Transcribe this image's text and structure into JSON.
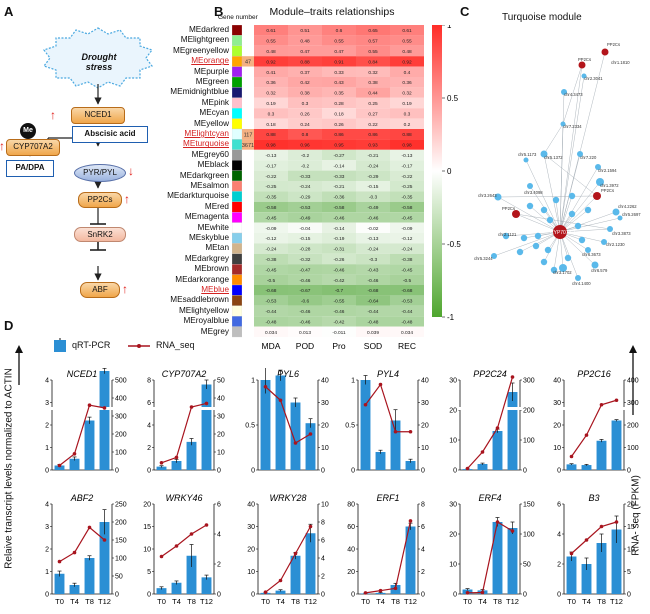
{
  "panels": {
    "a": "A",
    "b": "B",
    "c": "C",
    "d": "D"
  },
  "panel_a": {
    "stress": "Drought stress",
    "nced": "NCED1",
    "me": "Me",
    "cyp": "CYP707A2",
    "aba": "Abscisic acid",
    "padpa": "PA/DPA",
    "pyr": "PYR/PYL",
    "pp2c": "PP2Cs",
    "snrk": "SnRK2",
    "abf": "ABF"
  },
  "panel_b": {
    "title": "Module–traits relationships",
    "gene_number": "Gene number",
    "colorbar_ticks": [
      "1",
      "0.5",
      "0",
      "-0.5",
      "-1"
    ],
    "traits": [
      "MDA",
      "POD",
      "Pro",
      "SOD",
      "REC"
    ],
    "modules": [
      {
        "name": "MEdarkred",
        "color": "#8b0000",
        "num": "",
        "hl": false,
        "v": [
          0.61,
          0.51,
          0.6,
          0.65,
          0.61
        ]
      },
      {
        "name": "MElightgreen",
        "color": "#90ee90",
        "num": "",
        "hl": false,
        "v": [
          0.55,
          0.48,
          0.55,
          0.57,
          0.55
        ]
      },
      {
        "name": "MEgreenyellow",
        "color": "#adff2f",
        "num": "",
        "hl": false,
        "v": [
          0.48,
          0.47,
          0.47,
          0.55,
          0.48
        ]
      },
      {
        "name": "MEorange",
        "color": "#ffa500",
        "num": "47",
        "hl": true,
        "v": [
          0.92,
          0.88,
          0.91,
          0.84,
          0.92
        ]
      },
      {
        "name": "MEpurple",
        "color": "#a020f0",
        "num": "",
        "hl": false,
        "v": [
          0.41,
          0.37,
          0.33,
          0.32,
          0.4
        ]
      },
      {
        "name": "MEgreen",
        "color": "#00a000",
        "num": "",
        "hl": false,
        "v": [
          0.36,
          0.42,
          0.43,
          0.38,
          0.36
        ]
      },
      {
        "name": "MEmidnightblue",
        "color": "#191970",
        "num": "",
        "hl": false,
        "v": [
          0.32,
          0.38,
          0.35,
          0.44,
          0.32
        ]
      },
      {
        "name": "MEpink",
        "color": "#ffc0cb",
        "num": "",
        "hl": false,
        "v": [
          0.19,
          0.3,
          0.28,
          0.25,
          0.19
        ]
      },
      {
        "name": "MEcyan",
        "color": "#00ffff",
        "num": "",
        "hl": false,
        "v": [
          0.3,
          0.26,
          0.18,
          0.27,
          0.3
        ]
      },
      {
        "name": "MEyellow",
        "color": "#ffff00",
        "num": "",
        "hl": false,
        "v": [
          0.18,
          0.24,
          0.26,
          0.22,
          0.2
        ]
      },
      {
        "name": "MElightcyan",
        "color": "#e0ffff",
        "num": "117",
        "hl": true,
        "v": [
          0.88,
          0.8,
          0.86,
          0.86,
          0.88
        ]
      },
      {
        "name": "MEturquoise",
        "color": "#40e0d0",
        "num": "3671",
        "hl": true,
        "v": [
          0.98,
          0.96,
          0.95,
          0.93,
          0.98
        ]
      },
      {
        "name": "MEgrey60",
        "color": "#999999",
        "num": "",
        "hl": false,
        "v": [
          -0.13,
          -0.2,
          -0.27,
          -0.21,
          -0.13
        ]
      },
      {
        "name": "MEblack",
        "color": "#000000",
        "num": "",
        "hl": false,
        "v": [
          -0.17,
          -0.2,
          -0.14,
          -0.24,
          -0.17
        ]
      },
      {
        "name": "MEdarkgreen",
        "color": "#006400",
        "num": "",
        "hl": false,
        "v": [
          -0.22,
          -0.33,
          -0.33,
          -0.29,
          -0.22
        ]
      },
      {
        "name": "MEsalmon",
        "color": "#fa8072",
        "num": "",
        "hl": false,
        "v": [
          -0.25,
          -0.24,
          -0.21,
          -0.15,
          -0.25
        ]
      },
      {
        "name": "MEdarkturquoise",
        "color": "#00ced1",
        "num": "",
        "hl": false,
        "v": [
          -0.35,
          -0.29,
          -0.36,
          -0.3,
          -0.35
        ]
      },
      {
        "name": "MEred",
        "color": "#ff0000",
        "num": "",
        "hl": false,
        "v": [
          -0.58,
          -0.53,
          -0.58,
          -0.49,
          -0.58
        ]
      },
      {
        "name": "MEmagenta",
        "color": "#ff00ff",
        "num": "",
        "hl": false,
        "v": [
          -0.45,
          -0.49,
          -0.46,
          -0.46,
          -0.45
        ]
      },
      {
        "name": "MEwhite",
        "color": "#ffffff",
        "num": "",
        "hl": false,
        "v": [
          -0.09,
          -0.04,
          -0.14,
          -0.02,
          -0.09
        ]
      },
      {
        "name": "MEskyblue",
        "color": "#87ceeb",
        "num": "",
        "hl": false,
        "v": [
          -0.12,
          -0.15,
          -0.19,
          -0.13,
          -0.12
        ]
      },
      {
        "name": "MEtan",
        "color": "#d2b48c",
        "num": "",
        "hl": false,
        "v": [
          -0.24,
          -0.28,
          -0.31,
          -0.24,
          -0.24
        ]
      },
      {
        "name": "MEdarkgrey",
        "color": "#404040",
        "num": "",
        "hl": false,
        "v": [
          -0.38,
          -0.32,
          -0.26,
          -0.3,
          -0.38
        ]
      },
      {
        "name": "MEbrown",
        "color": "#a52a2a",
        "num": "",
        "hl": false,
        "v": [
          -0.45,
          -0.47,
          -0.46,
          -0.43,
          -0.45
        ]
      },
      {
        "name": "MEdarkorange",
        "color": "#ff8c00",
        "num": "",
        "hl": false,
        "v": [
          -0.5,
          -0.46,
          -0.42,
          -0.46,
          -0.5
        ]
      },
      {
        "name": "MEblue",
        "color": "#0000ff",
        "num": "",
        "hl": true,
        "v": [
          -0.68,
          -0.67,
          -0.7,
          -0.68,
          -0.68
        ]
      },
      {
        "name": "MEsaddlebrown",
        "color": "#8b4513",
        "num": "",
        "hl": false,
        "v": [
          -0.53,
          -0.6,
          -0.55,
          -0.64,
          -0.53
        ]
      },
      {
        "name": "MElightyellow",
        "color": "#ffffe0",
        "num": "",
        "hl": false,
        "v": [
          -0.44,
          -0.46,
          -0.46,
          -0.44,
          -0.44
        ]
      },
      {
        "name": "MEroyalblue",
        "color": "#4169e1",
        "num": "",
        "hl": false,
        "v": [
          -0.48,
          -0.46,
          -0.42,
          -0.48,
          -0.48
        ]
      },
      {
        "name": "MEgrey",
        "color": "#bebebe",
        "num": "",
        "hl": false,
        "v": [
          0.034,
          0.013,
          -0.011,
          0.039,
          0.034
        ]
      }
    ]
  },
  "panel_c": {
    "title": "Turquoise module",
    "labels": [
      "PP2Cs",
      "chr1.1810",
      "PP2Cs",
      "chr2.3041",
      "chr4.3473",
      "chr7.2334",
      "chr5.1372",
      "chr7.220",
      "chr2.1594",
      "chr1.3972",
      "chr3.2643",
      "PP2Cs",
      "chr2.1121",
      "CYP707A2",
      "PP2Cs",
      "chr4.2262",
      "chr3.3873",
      "chr3.1702",
      "chr4.1400",
      "chr6.579",
      "chr2.1230",
      "chr6.3673",
      "chr5.2697",
      "chr3.4098",
      "chr5.1173",
      "chr5.3244"
    ]
  },
  "panel_d": {
    "legend_qrt": "qRT-PCR",
    "legend_rna": "RNA_seq",
    "y_left_label": "Relaive transcript levels normalized to ACTIN",
    "y_right_label": "RNA- seq (FPKM)",
    "timepoints": [
      "T0",
      "T4",
      "T8",
      "T12"
    ]
  },
  "chart_data": [
    {
      "type": "bar",
      "title": "NCED1",
      "categories": [
        "T0",
        "T4",
        "T8",
        "T12"
      ],
      "left_ticks": [
        "0",
        "1",
        "2",
        "3",
        "4"
      ],
      "right_ticks": [
        "0",
        "100",
        "200",
        "300",
        "400",
        "500"
      ],
      "axis_break": true,
      "series": [
        {
          "name": "qRT-PCR",
          "values": [
            0.2,
            0.5,
            2.2,
            4.4
          ],
          "err": [
            0.05,
            0.08,
            0.15,
            0.12
          ]
        },
        {
          "name": "RNA_seq",
          "values": [
            25,
            90,
            360,
            345
          ]
        }
      ]
    },
    {
      "type": "bar",
      "title": "CYP707A2",
      "categories": [
        "T0",
        "T4",
        "T8",
        "T12"
      ],
      "left_ticks": [
        "0",
        "2",
        "4",
        "6",
        "8"
      ],
      "right_ticks": [
        "0",
        "10",
        "20",
        "30",
        "40",
        "50"
      ],
      "axis_break": true,
      "series": [
        {
          "name": "qRT-PCR",
          "values": [
            0.3,
            0.8,
            2.5,
            7.6
          ],
          "err": [
            0.08,
            0.15,
            0.3,
            0.4
          ]
        },
        {
          "name": "RNA_seq",
          "values": [
            4,
            7,
            35,
            37
          ]
        }
      ]
    },
    {
      "type": "bar",
      "title": "PYL6",
      "categories": [
        "T0",
        "T4",
        "T8",
        "T12"
      ],
      "left_ticks": [
        "0",
        "0.5",
        "1"
      ],
      "right_ticks": [
        "0",
        "10",
        "20",
        "30",
        "40"
      ],
      "axis_break": false,
      "series": [
        {
          "name": "qRT-PCR",
          "values": [
            1.0,
            1.05,
            0.75,
            0.52
          ],
          "err": [
            0.15,
            0.06,
            0.05,
            0.05
          ]
        },
        {
          "name": "RNA_seq",
          "values": [
            37,
            31,
            12,
            16
          ]
        }
      ]
    },
    {
      "type": "bar",
      "title": "PYL4",
      "categories": [
        "T0",
        "T4",
        "T8",
        "T12"
      ],
      "left_ticks": [
        "0",
        "0.5",
        "1"
      ],
      "right_ticks": [
        "0",
        "10",
        "20",
        "30",
        "40"
      ],
      "axis_break": false,
      "series": [
        {
          "name": "qRT-PCR",
          "values": [
            1.0,
            0.2,
            0.55,
            0.1
          ],
          "err": [
            0.05,
            0.02,
            0.12,
            0.02
          ]
        },
        {
          "name": "RNA_seq",
          "values": [
            29,
            38,
            17,
            17
          ]
        }
      ]
    },
    {
      "type": "bar",
      "title": "PP2C24",
      "categories": [
        "T0",
        "T4",
        "T8",
        "T12"
      ],
      "left_ticks": [
        "0",
        "10",
        "20",
        "30"
      ],
      "right_ticks": [
        "0",
        "100",
        "200",
        "300"
      ],
      "axis_break": true,
      "series": [
        {
          "name": "qRT-PCR",
          "values": [
            0.3,
            2,
            13,
            26
          ],
          "err": [
            0.1,
            0.3,
            0.6,
            3
          ]
        },
        {
          "name": "RNA_seq",
          "values": [
            5,
            60,
            140,
            310
          ]
        }
      ]
    },
    {
      "type": "bar",
      "title": "PP2C16",
      "categories": [
        "T0",
        "T4",
        "T8",
        "T12"
      ],
      "left_ticks": [
        "0",
        "10",
        "20",
        "30",
        "40"
      ],
      "right_ticks": [
        "0",
        "100",
        "200",
        "300",
        "400"
      ],
      "axis_break": true,
      "series": [
        {
          "name": "qRT-PCR",
          "values": [
            2.5,
            2.2,
            13,
            22
          ],
          "err": [
            0.3,
            0.3,
            0.6,
            0.4
          ]
        },
        {
          "name": "RNA_seq",
          "values": [
            60,
            155,
            290,
            310
          ]
        }
      ]
    },
    {
      "type": "bar",
      "title": "ABF2",
      "categories": [
        "T0",
        "T4",
        "T8",
        "T12"
      ],
      "left_ticks": [
        "0",
        "1",
        "2",
        "3",
        "4"
      ],
      "right_ticks": [
        "0",
        "50",
        "100",
        "150",
        "200",
        "250"
      ],
      "axis_break": false,
      "series": [
        {
          "name": "qRT-PCR",
          "values": [
            0.9,
            0.4,
            1.6,
            3.2
          ],
          "err": [
            0.12,
            0.08,
            0.1,
            0.55
          ]
        },
        {
          "name": "RNA_seq",
          "values": [
            90,
            115,
            185,
            150
          ]
        }
      ]
    },
    {
      "type": "bar",
      "title": "WRKY46",
      "categories": [
        "T0",
        "T4",
        "T8",
        "T12"
      ],
      "left_ticks": [
        "0",
        "5",
        "10",
        "15",
        "20"
      ],
      "right_ticks": [
        "0",
        "2",
        "4",
        "6"
      ],
      "axis_break": false,
      "series": [
        {
          "name": "qRT-PCR",
          "values": [
            1.3,
            2.5,
            8.5,
            3.7
          ],
          "err": [
            0.3,
            0.4,
            2.5,
            0.5
          ]
        },
        {
          "name": "RNA_seq",
          "values": [
            2.5,
            3.2,
            4.0,
            4.6
          ]
        }
      ]
    },
    {
      "type": "bar",
      "title": "WRKY28",
      "categories": [
        "T0",
        "T4",
        "T8",
        "T12"
      ],
      "left_ticks": [
        "0",
        "10",
        "20",
        "30",
        "40"
      ],
      "right_ticks": [
        "0",
        "2",
        "4",
        "6",
        "8",
        "10"
      ],
      "axis_break": false,
      "series": [
        {
          "name": "qRT-PCR",
          "values": [
            0.5,
            1.5,
            17,
            27
          ],
          "err": [
            0.2,
            0.4,
            1.5,
            4
          ]
        },
        {
          "name": "RNA_seq",
          "values": [
            0.2,
            1.5,
            4.5,
            7.5
          ]
        }
      ]
    },
    {
      "type": "bar",
      "title": "ERF1",
      "categories": [
        "T0",
        "T4",
        "T8",
        "T12"
      ],
      "left_ticks": [
        "0",
        "20",
        "40",
        "60",
        "80"
      ],
      "right_ticks": [
        "0",
        "2",
        "4",
        "6",
        "8"
      ],
      "axis_break": false,
      "series": [
        {
          "name": "qRT-PCR",
          "values": [
            0.5,
            1,
            8,
            60
          ],
          "err": [
            0.2,
            0.3,
            1.5,
            3
          ]
        },
        {
          "name": "RNA_seq",
          "values": [
            0.1,
            0.3,
            0.5,
            6.5
          ]
        }
      ]
    },
    {
      "type": "bar",
      "title": "ERF4",
      "categories": [
        "T0",
        "T4",
        "T8",
        "T12"
      ],
      "left_ticks": [
        "0",
        "10",
        "20",
        "30"
      ],
      "right_ticks": [
        "0",
        "50",
        "100",
        "150"
      ],
      "axis_break": false,
      "series": [
        {
          "name": "qRT-PCR",
          "values": [
            1.5,
            1.2,
            24,
            22
          ],
          "err": [
            0.3,
            0.3,
            1.5,
            2
          ]
        },
        {
          "name": "RNA_seq",
          "values": [
            2,
            2.5,
            120,
            105
          ]
        }
      ]
    },
    {
      "type": "bar",
      "title": "B3",
      "categories": [
        "T0",
        "T4",
        "T8",
        "T12"
      ],
      "left_ticks": [
        "0",
        "2",
        "4",
        "6"
      ],
      "right_ticks": [
        "0",
        "5",
        "10",
        "15",
        "20"
      ],
      "axis_break": false,
      "series": [
        {
          "name": "qRT-PCR",
          "values": [
            2.5,
            2.0,
            3.4,
            4.3
          ],
          "err": [
            0.3,
            0.4,
            0.6,
            0.9
          ]
        },
        {
          "name": "RNA_seq",
          "values": [
            9,
            12,
            15,
            16
          ]
        }
      ]
    }
  ]
}
